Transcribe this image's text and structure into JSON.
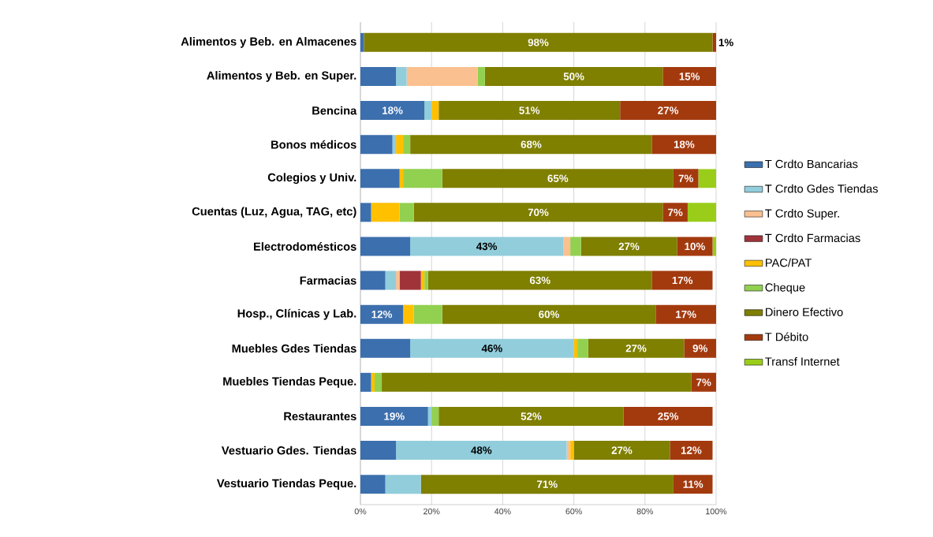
{
  "chart_data": {
    "type": "bar",
    "orientation": "horizontal",
    "stacked": true,
    "grid": "x",
    "legend": "right",
    "categories": [
      "Alimentos y Beb. en Almacenes",
      "Alimentos y Beb. en Super.",
      "Bencina",
      "Bonos médicos",
      "Colegios y Univ.",
      "Cuentas (Luz, Agua, TAG, etc)",
      "Electrodomésticos",
      "Farmacias",
      "Hosp., Clínicas y Lab.",
      "Muebles Gdes Tiendas",
      "Muebles Tiendas Peque.",
      "Restaurantes",
      "Vestuario Gdes. Tiendas",
      "Vestuario Tiendas Peque."
    ],
    "xlim": [
      0,
      100
    ],
    "xticks": [
      {
        "value": 0,
        "label": "0%"
      },
      {
        "value": 20,
        "label": "20%"
      },
      {
        "value": 40,
        "label": "40%"
      },
      {
        "value": 60,
        "label": "60%"
      },
      {
        "value": 80,
        "label": "80%"
      },
      {
        "value": 100,
        "label": "100%"
      }
    ],
    "series": [
      {
        "name": "T Crdto Bancarias",
        "color": "#3c6fad",
        "values": [
          1,
          10,
          18,
          9,
          11,
          3,
          14,
          7,
          12,
          14,
          3,
          19,
          10,
          7
        ],
        "value_labels": [
          null,
          null,
          "18%",
          null,
          null,
          null,
          null,
          null,
          "12%",
          null,
          null,
          "19%",
          null,
          null
        ]
      },
      {
        "name": "T Crdto Gdes Tiendas",
        "color": "#92cddc",
        "values": [
          null,
          3,
          2,
          1,
          null,
          null,
          43,
          3,
          null,
          46,
          null,
          1,
          48,
          10
        ],
        "value_labels": [
          null,
          null,
          null,
          null,
          null,
          null,
          "43%",
          null,
          null,
          "46%",
          null,
          null,
          "48%",
          null
        ]
      },
      {
        "name": "T Crdto Super.",
        "color": "#fac090",
        "values": [
          null,
          20,
          null,
          null,
          null,
          null,
          2,
          1,
          null,
          null,
          null,
          null,
          1,
          null
        ]
      },
      {
        "name": "T Crdto Farmacias",
        "color": "#a0333a",
        "values": [
          null,
          null,
          null,
          null,
          null,
          null,
          null,
          6,
          null,
          null,
          null,
          null,
          null,
          null
        ]
      },
      {
        "name": "PAC/PAT",
        "color": "#ffc000",
        "values": [
          null,
          null,
          2,
          2,
          1,
          8,
          null,
          1,
          3,
          1,
          1,
          null,
          1,
          null
        ]
      },
      {
        "name": "Cheque",
        "color": "#92d050",
        "values": [
          null,
          2,
          null,
          2,
          11,
          4,
          3,
          1,
          8,
          3,
          2,
          2,
          null,
          null
        ]
      },
      {
        "name": "Dinero Efectivo",
        "color": "#7f7f00",
        "values": [
          98,
          50,
          51,
          68,
          65,
          70,
          27,
          63,
          60,
          27,
          87,
          52,
          27,
          71
        ],
        "value_labels": [
          "98%",
          "50%",
          "51%",
          "68%",
          "65%",
          "70%",
          "27%",
          "63%",
          "60%",
          "27%",
          null,
          "52%",
          "27%",
          "71%"
        ]
      },
      {
        "name": "T Débito",
        "color": "#a33a0e",
        "values": [
          1,
          15,
          27,
          18,
          7,
          7,
          10,
          17,
          17,
          9,
          7,
          25,
          12,
          11
        ],
        "value_labels": [
          "1%",
          "15%",
          "27%",
          "18%",
          "7%",
          "7%",
          "10%",
          "17%",
          "17%",
          "9%",
          "7%",
          "25%",
          "12%",
          "11%"
        ]
      },
      {
        "name": "Transf Internet",
        "color": "#9acd1a",
        "values": [
          null,
          null,
          null,
          null,
          5,
          8,
          1,
          null,
          null,
          null,
          null,
          null,
          null,
          null
        ]
      }
    ]
  }
}
